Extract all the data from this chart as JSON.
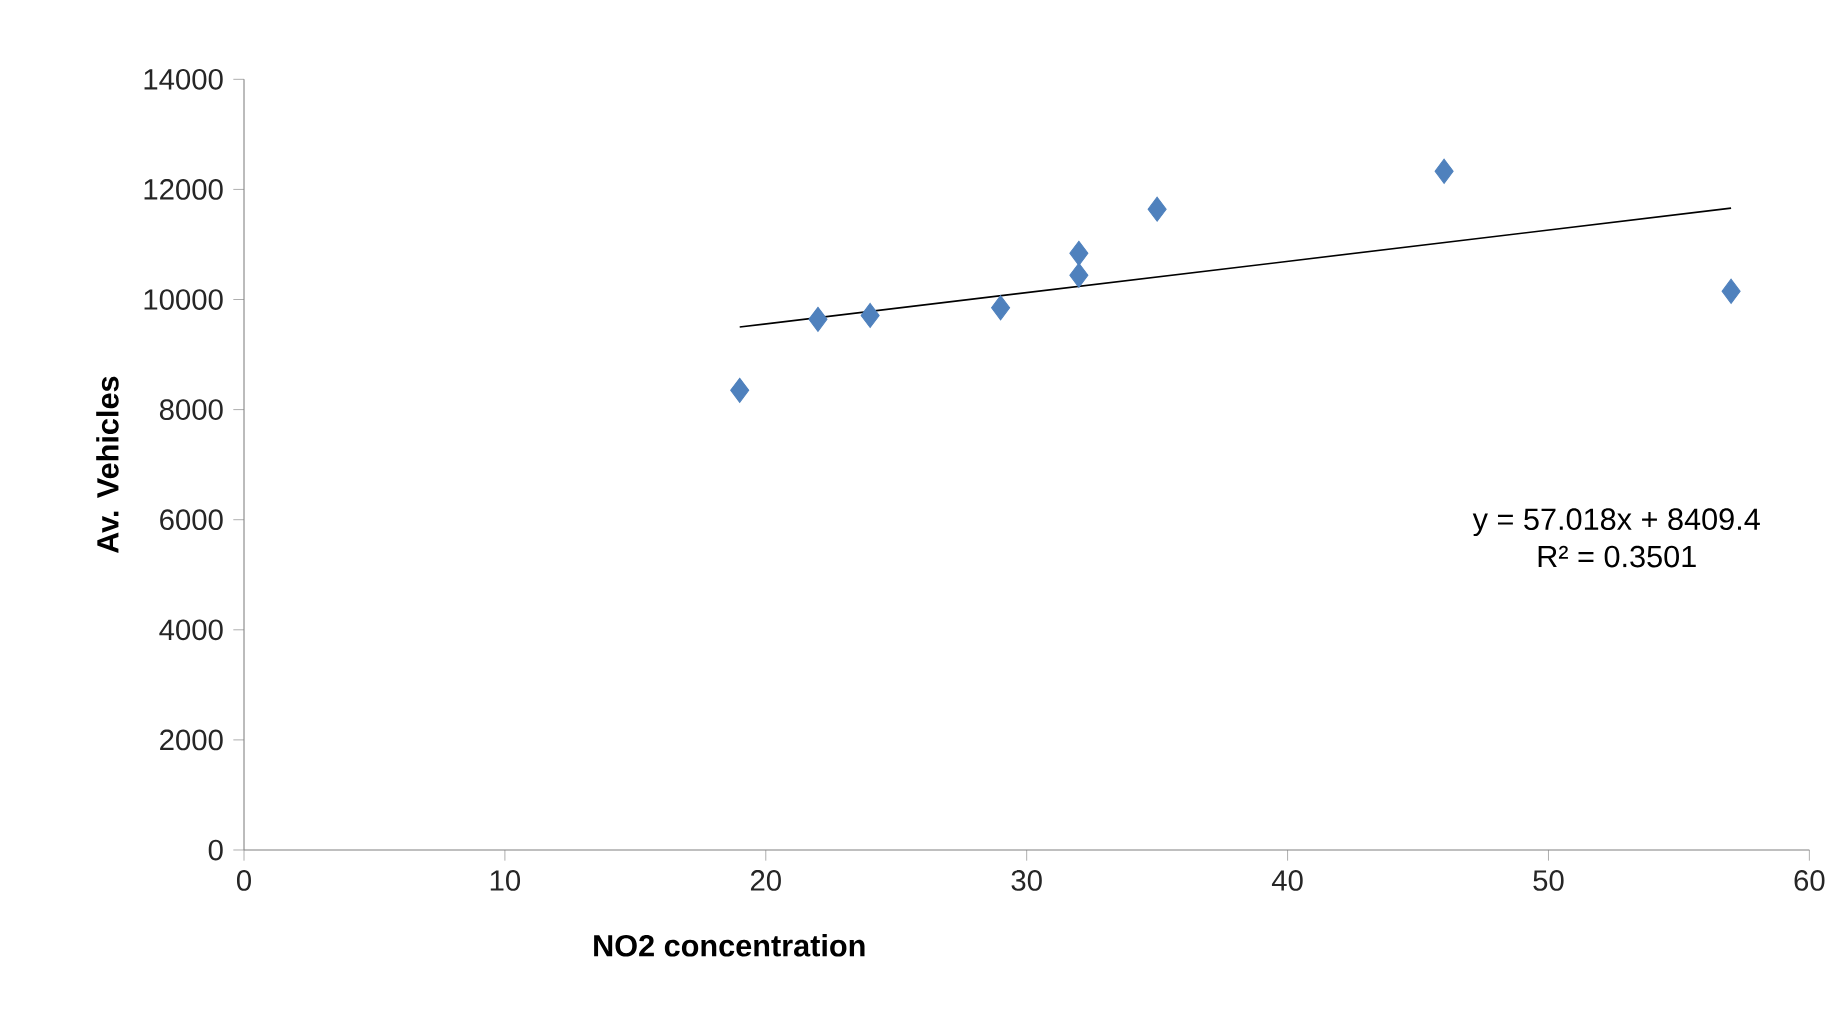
{
  "chart_data": {
    "type": "scatter",
    "xlabel": "NO2 concentration",
    "ylabel": "Av. Vehicles",
    "series": [
      {
        "type": "scatter",
        "color": "#4f81bd",
        "marker": "diamond",
        "x": [
          19,
          22,
          24,
          29,
          32,
          32,
          35,
          46,
          57
        ],
        "values": [
          8350,
          9640,
          9710,
          9850,
          10440,
          10840,
          11640,
          12330,
          10150
        ]
      },
      {
        "type": "line",
        "color": "#000000",
        "marker": "none",
        "x": [
          19,
          57
        ],
        "values": [
          9500,
          11660
        ]
      }
    ],
    "xlim": [
      0,
      60
    ],
    "xticks": [
      0,
      10,
      20,
      30,
      40,
      50,
      60
    ],
    "ylim": [
      0,
      14000
    ],
    "yticks": [
      0,
      2000,
      4000,
      6000,
      8000,
      10000,
      12000,
      14000
    ],
    "grid": false,
    "annotations": [
      "y = 57.018x + 8409.4",
      "R² = 0.3501"
    ]
  }
}
